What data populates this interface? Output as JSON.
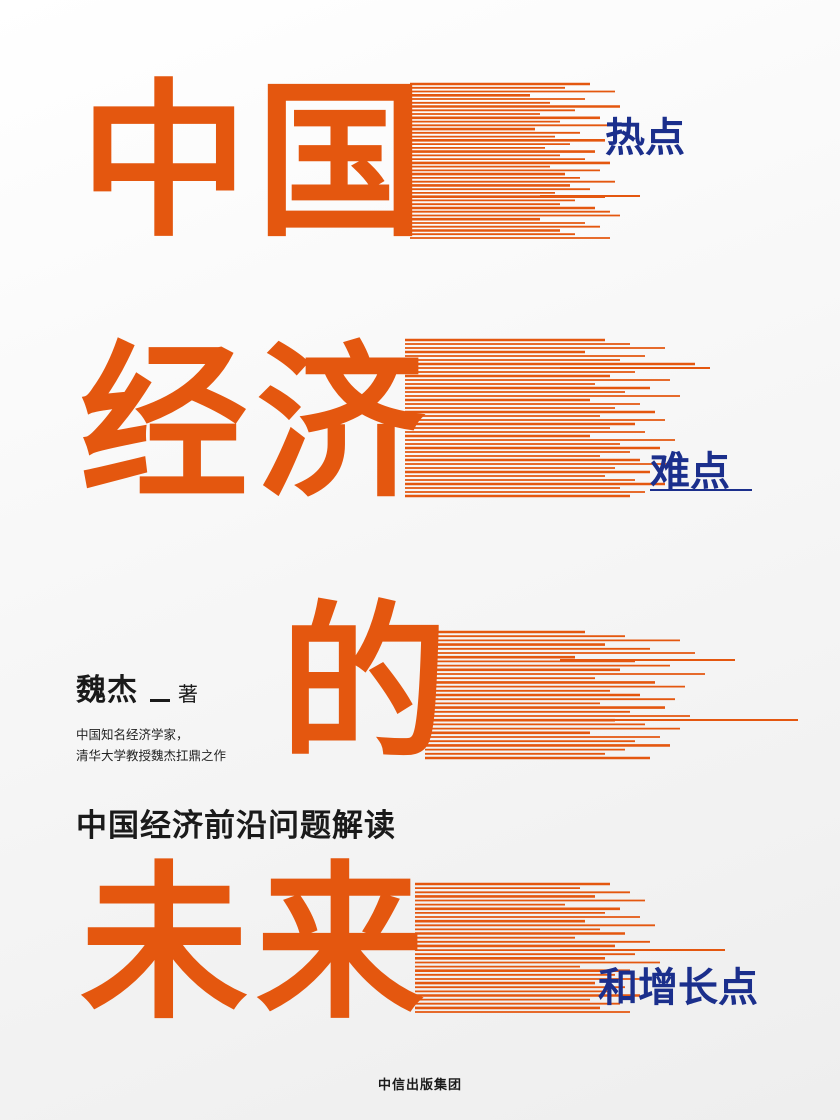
{
  "colors": {
    "orange": "#e4570f",
    "blue": "#1b2f8c",
    "background": "#f4f4f4"
  },
  "title": {
    "line1": "中国",
    "line2": "经济",
    "line3": "的",
    "line4": "未来"
  },
  "tags": {
    "hot": "热点",
    "hard": "难点",
    "growth": "和增长点"
  },
  "author": {
    "name": "魏杰",
    "role": "著",
    "desc_line1": "中国知名经济学家，",
    "desc_line2": "清华大学教授魏杰扛鼎之作"
  },
  "subtitle": "中国经济前沿问题解读",
  "publisher": "中信出版集团"
}
